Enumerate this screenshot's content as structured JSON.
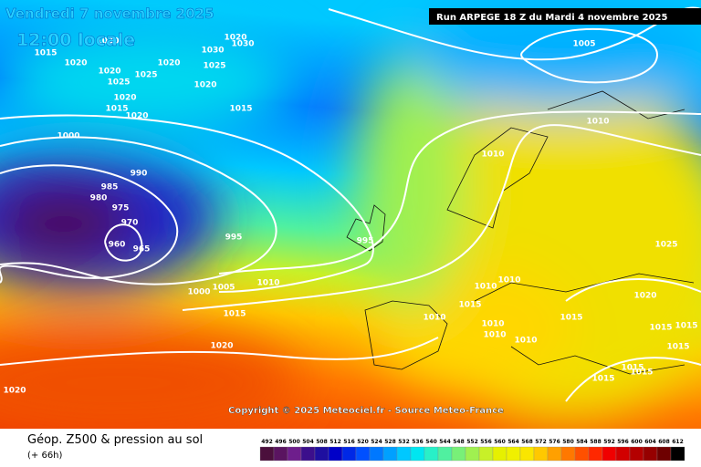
{
  "header": {
    "valid": "Vendredi 7 novembre 2025",
    "local_time": "12:00 locale",
    "run": "Run ARPEGE 18 Z du Mardi 4 novembre 2025",
    "copyright": "Copyright © 2025 Meteociel.fr - Source Meteo-France"
  },
  "footer": {
    "title": "Géop. Z500 & pression au sol",
    "lead": "(+ 66h)"
  },
  "scale": {
    "values": [
      492,
      496,
      500,
      504,
      508,
      512,
      516,
      520,
      524,
      528,
      532,
      536,
      540,
      544,
      548,
      552,
      556,
      560,
      564,
      568,
      572,
      576,
      580,
      584,
      588,
      592,
      596,
      600,
      604,
      608,
      612
    ],
    "colors": [
      "#4b0f3c",
      "#5a1460",
      "#6e1e8c",
      "#3c0f8c",
      "#1e0fa0",
      "#0000c8",
      "#0028e6",
      "#0050ff",
      "#0078ff",
      "#00a0ff",
      "#00c8ff",
      "#00e6f0",
      "#28f0c8",
      "#50f0a0",
      "#78f078",
      "#a0f050",
      "#c8f028",
      "#e6f000",
      "#f0f000",
      "#fae600",
      "#ffc800",
      "#ffa000",
      "#ff7800",
      "#ff5000",
      "#ff2800",
      "#f00000",
      "#d20000",
      "#b40000",
      "#960000",
      "#6e0000",
      "#000000"
    ]
  },
  "isobar_labels": [
    "1030",
    "1020",
    "1015",
    "1020",
    "1025",
    "1025",
    "1020",
    "1030",
    "1025",
    "1020",
    "1030",
    "1020",
    "1015",
    "1020",
    "1015",
    "1020",
    "1000",
    "990",
    "985",
    "980",
    "975",
    "970",
    "960",
    "965",
    "995",
    "995",
    "1000",
    "1005",
    "1010",
    "1015",
    "1020",
    "1020",
    "1005",
    "1010",
    "1010",
    "1010",
    "1010",
    "1015",
    "1010",
    "1010",
    "1010",
    "1010",
    "1015",
    "1025",
    "1020",
    "1015",
    "1015",
    "1015",
    "1015",
    "1015",
    "1015"
  ]
}
